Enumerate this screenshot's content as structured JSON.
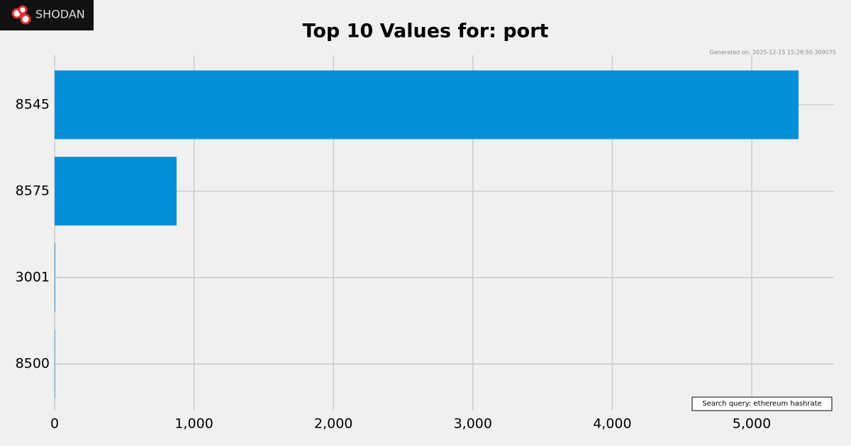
{
  "logo": "Shodan",
  "chart_data": {
    "type": "barh",
    "title": "Top 10 Values for: port",
    "subtitle": "Generated on: 2025-12-15 15:28:50.309075",
    "annotation": "Search query: ethereum hashrate",
    "categories": [
      "8545",
      "8575",
      "3001",
      "8500"
    ],
    "values": [
      5336,
      875,
      4,
      3
    ],
    "color": "#038ed7",
    "xlim": [
      0,
      5590
    ],
    "xticks": [
      0,
      {
        "value": 1000,
        "label": "1,000"
      },
      {
        "value": 2000,
        "label": "2,000"
      },
      {
        "value": 3000,
        "label": "3,000"
      },
      {
        "value": 4000,
        "label": "4,000"
      },
      {
        "value": 5000,
        "label": "5,000"
      }
    ],
    "grid": true
  }
}
